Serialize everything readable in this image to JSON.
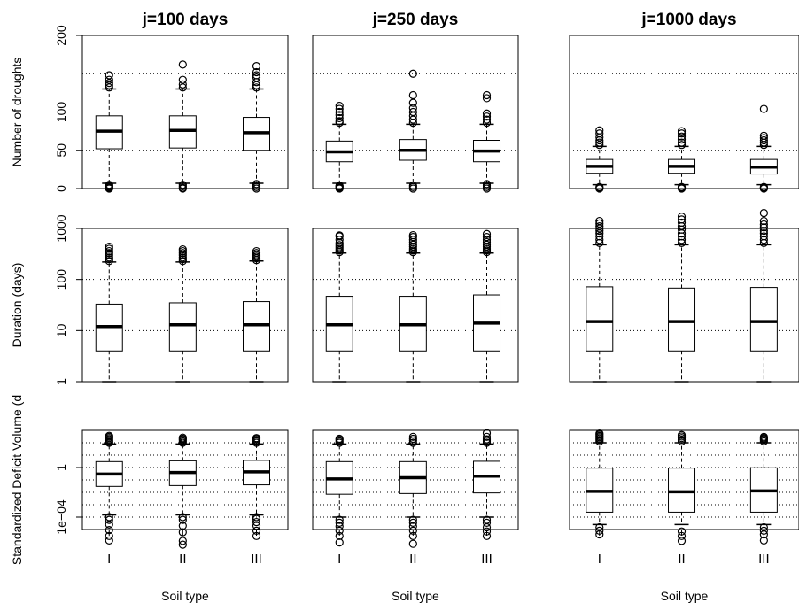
{
  "chart_data": {
    "type": "boxplot",
    "columns": [
      "j=100 days",
      "j=250 days",
      "j=1000 days"
    ],
    "rows": [
      {
        "ylabel": "Number of droughts",
        "scale": "linear",
        "ylim": [
          0,
          200
        ],
        "yticks": [
          0,
          50,
          100,
          200
        ],
        "ytick_labels": [
          "0",
          "50",
          "100",
          "200"
        ],
        "grid": [
          0,
          50,
          100,
          150,
          200
        ]
      },
      {
        "ylabel": "Duration (days)",
        "scale": "log",
        "ylim": [
          1,
          1000
        ],
        "yticks": [
          1,
          10,
          100,
          1000
        ],
        "ytick_labels": [
          "1",
          "10",
          "100",
          "1000"
        ],
        "grid": [
          1,
          10,
          100,
          1000
        ]
      },
      {
        "ylabel": "Standardized Deficit Volume (d",
        "scale": "log",
        "ylim": [
          1e-05,
          1000
        ],
        "yticks": [
          0.0001,
          1
        ],
        "ytick_labels": [
          "1e−04",
          "1"
        ],
        "grid": [
          1e-05,
          0.0001,
          0.001,
          0.01,
          0.1,
          1,
          10,
          100,
          1000
        ]
      }
    ],
    "categories": [
      "I",
      "II",
      "III"
    ],
    "xlabel": "Soil type",
    "grid": "dotted",
    "boxes": [
      [
        [
          {
            "whislo": 7,
            "q1": 52,
            "med": 75,
            "q3": 95,
            "whishi": 130,
            "fliers": [
              0,
              1,
              2,
              3,
              4,
              5,
              132,
              135,
              138,
              142,
              148
            ]
          },
          {
            "whislo": 7,
            "q1": 53,
            "med": 76,
            "q3": 95,
            "whishi": 130,
            "fliers": [
              0,
              1,
              3,
              5,
              132,
              136,
              142,
              162
            ]
          },
          {
            "whislo": 7,
            "q1": 50,
            "med": 73,
            "q3": 93,
            "whishi": 130,
            "fliers": [
              0,
              2,
              4,
              6,
              132,
              135,
              139,
              145,
              148,
              152,
              160
            ]
          }
        ],
        [
          {
            "whislo": 7,
            "q1": 35,
            "med": 48,
            "q3": 62,
            "whishi": 84,
            "fliers": [
              0,
              1,
              2,
              3,
              4,
              86,
              88,
              92,
              96,
              100,
              104,
              108
            ]
          },
          {
            "whislo": 7,
            "q1": 37,
            "med": 50,
            "q3": 64,
            "whishi": 84,
            "fliers": [
              0,
              2,
              4,
              86,
              90,
              95,
              100,
              105,
              112,
              122,
              150
            ]
          },
          {
            "whislo": 7,
            "q1": 35,
            "med": 49,
            "q3": 63,
            "whishi": 84,
            "fliers": [
              0,
              2,
              4,
              6,
              86,
              90,
              94,
              98,
              118,
              122
            ]
          }
        ],
        [
          {
            "whislo": 5,
            "q1": 20,
            "med": 29,
            "q3": 38,
            "whishi": 55,
            "fliers": [
              0,
              1,
              2,
              57,
              60,
              63,
              67,
              72,
              76
            ]
          },
          {
            "whislo": 5,
            "q1": 20,
            "med": 29,
            "q3": 38,
            "whishi": 55,
            "fliers": [
              0,
              1,
              2,
              57,
              60,
              64,
              68,
              72,
              75
            ]
          },
          {
            "whislo": 5,
            "q1": 19,
            "med": 28,
            "q3": 38,
            "whishi": 55,
            "fliers": [
              0,
              1,
              2,
              57,
              60,
              63,
              66,
              69,
              104
            ]
          }
        ]
      ],
      [
        [
          {
            "whislo": 1,
            "q1": 4,
            "med": 12,
            "q3": 33,
            "whishi": 220,
            "fliers": [
              230,
              250,
              270,
              300,
              330,
              360,
              400,
              440
            ]
          },
          {
            "whislo": 1,
            "q1": 4,
            "med": 13,
            "q3": 35,
            "whishi": 220,
            "fliers": [
              230,
              250,
              270,
              300,
              330,
              360,
              390
            ]
          },
          {
            "whislo": 1,
            "q1": 4,
            "med": 13,
            "q3": 37,
            "whishi": 230,
            "fliers": [
              240,
              260,
              280,
              300,
              330,
              360
            ]
          }
        ],
        [
          {
            "whislo": 1,
            "q1": 4,
            "med": 13,
            "q3": 47,
            "whishi": 330,
            "fliers": [
              345,
              370,
              400,
              430,
              470,
              520,
              600,
              700,
              730
            ]
          },
          {
            "whislo": 1,
            "q1": 4,
            "med": 13,
            "q3": 47,
            "whishi": 330,
            "fliers": [
              345,
              370,
              400,
              440,
              480,
              540,
              600,
              680,
              740
            ]
          },
          {
            "whislo": 1,
            "q1": 4,
            "med": 14,
            "q3": 50,
            "whishi": 330,
            "fliers": [
              345,
              370,
              400,
              440,
              480,
              540,
              600,
              680,
              780
            ]
          }
        ],
        [
          {
            "whislo": 1,
            "q1": 4,
            "med": 15,
            "q3": 72,
            "whishi": 480,
            "fliers": [
              520,
              600,
              700,
              800,
              900,
              1000,
              1100,
              1250,
              1400
            ]
          },
          {
            "whislo": 1,
            "q1": 4,
            "med": 15,
            "q3": 68,
            "whishi": 480,
            "fliers": [
              520,
              600,
              700,
              800,
              950,
              1100,
              1300,
              1500,
              1700
            ]
          },
          {
            "whislo": 1,
            "q1": 4,
            "med": 15,
            "q3": 70,
            "whishi": 480,
            "fliers": [
              520,
              600,
              700,
              800,
              900,
              1050,
              1200,
              1400,
              2000
            ]
          }
        ]
      ],
      [
        [
          {
            "whislo": 0.00015,
            "q1": 0.03,
            "med": 0.3,
            "q3": 3,
            "whishi": 80,
            "fliers": [
              1.3e-06,
              3e-06,
              9e-06,
              2.5e-05,
              6e-05,
              0.0001,
              100,
              120,
              150,
              190,
              240,
              300,
              360
            ]
          },
          {
            "whislo": 0.00015,
            "q1": 0.035,
            "med": 0.4,
            "q3": 3.5,
            "whishi": 80,
            "fliers": [
              6e-07,
              1.2e-06,
              6e-06,
              2e-05,
              6e-05,
              0.0001,
              100,
              130,
              170,
              210,
              260
            ]
          },
          {
            "whislo": 0.00015,
            "q1": 0.04,
            "med": 0.45,
            "q3": 3.8,
            "whishi": 80,
            "fliers": [
              3e-06,
              8e-06,
              2e-05,
              4e-05,
              7e-05,
              0.0001,
              100,
              130,
              160,
              200,
              240
            ]
          }
        ],
        [
          {
            "whislo": 0.0001,
            "q1": 0.007,
            "med": 0.12,
            "q3": 3,
            "whishi": 80,
            "fliers": [
              9e-07,
              3e-06,
              8e-06,
              1.8e-05,
              3.5e-05,
              6e-05,
              100,
              130,
              170,
              210
            ]
          },
          {
            "whislo": 0.0001,
            "q1": 0.008,
            "med": 0.15,
            "q3": 3,
            "whishi": 80,
            "fliers": [
              7e-07,
              3e-06,
              8e-06,
              1.8e-05,
              3.5e-05,
              6e-05,
              100,
              150,
              210,
              300
            ]
          },
          {
            "whislo": 0.0001,
            "q1": 0.009,
            "med": 0.2,
            "q3": 3.2,
            "whishi": 80,
            "fliers": [
              3e-06,
              7e-06,
              1.5e-05,
              3.5e-05,
              6e-05,
              100,
              140,
              190,
              300,
              600
            ]
          }
        ],
        [
          {
            "whislo": 2.5e-05,
            "q1": 0.00025,
            "med": 0.012,
            "q3": 0.9,
            "whishi": 100,
            "fliers": [
              4e-06,
              8e-06,
              1.5e-05,
              130,
              170,
              220,
              280,
              350,
              450,
              550
            ]
          },
          {
            "whislo": 2.5e-05,
            "q1": 0.00025,
            "med": 0.011,
            "q3": 0.9,
            "whishi": 100,
            "fliers": [
              1.2e-06,
              3e-06,
              7e-06,
              130,
              180,
              240,
              320,
              420
            ]
          },
          {
            "whislo": 2.5e-05,
            "q1": 0.00025,
            "med": 0.013,
            "q3": 0.95,
            "whishi": 100,
            "fliers": [
              1.3e-06,
              4e-06,
              8e-06,
              1.5e-05,
              130,
              170,
              210,
              250,
              300
            ]
          }
        ]
      ]
    ]
  }
}
